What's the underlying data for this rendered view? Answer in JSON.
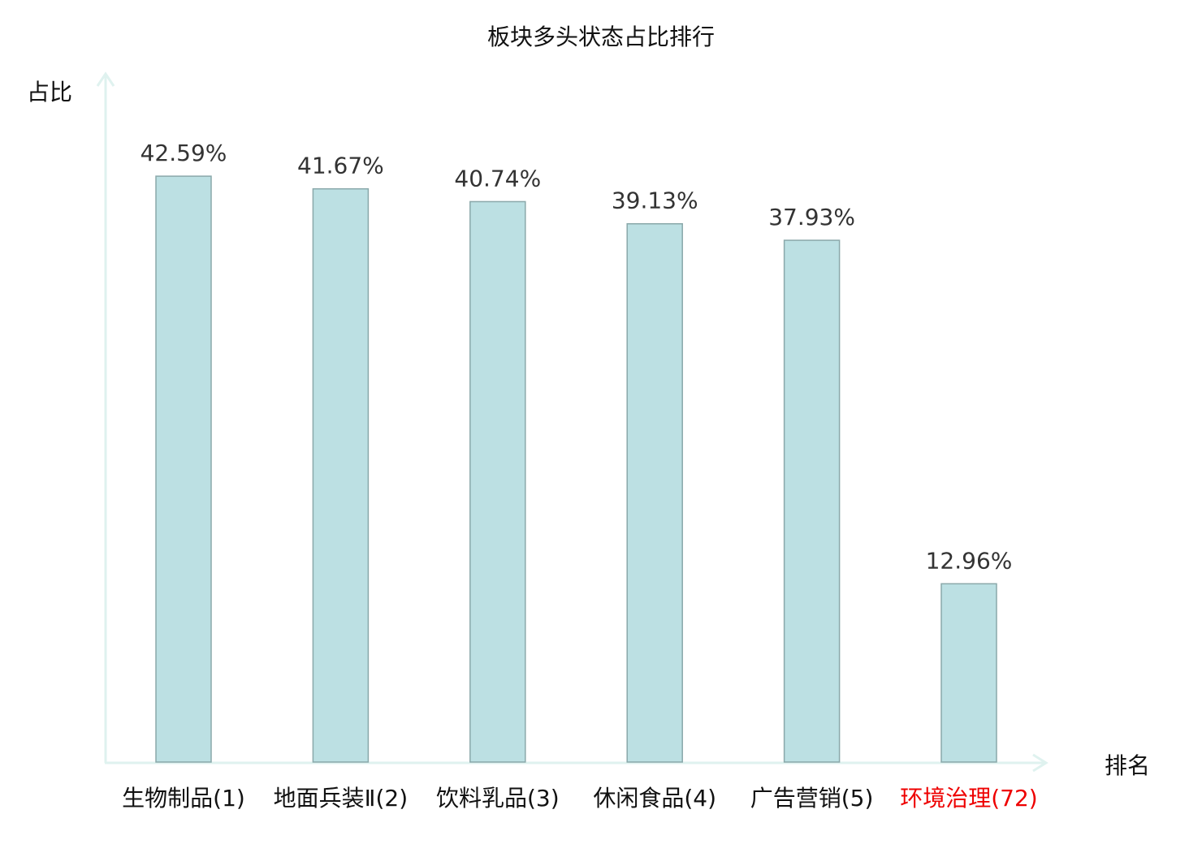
{
  "chart_data": {
    "type": "bar",
    "title": "板块多头状态占比排行",
    "xlabel": "排名",
    "ylabel": "占比",
    "categories": [
      "生物制品(1)",
      "地面兵装Ⅱ(2)",
      "饮料乳品(3)",
      "休闲食品(4)",
      "广告营销(5)",
      "环境治理(72)"
    ],
    "values": [
      42.59,
      41.67,
      40.74,
      39.13,
      37.93,
      12.96
    ],
    "data_labels": [
      "42.59%",
      "41.67%",
      "40.74%",
      "39.13%",
      "37.93%",
      "12.96%"
    ],
    "highlight_category_index": 5,
    "ylim": [
      0,
      50
    ],
    "grid": false,
    "legend": "none",
    "colors": {
      "bar_fill": "#bce0e3",
      "bar_stroke": "#8aa8aa",
      "axis": "#dff2ef",
      "label_text": "#333333",
      "highlight_text": "#ee0000"
    }
  }
}
